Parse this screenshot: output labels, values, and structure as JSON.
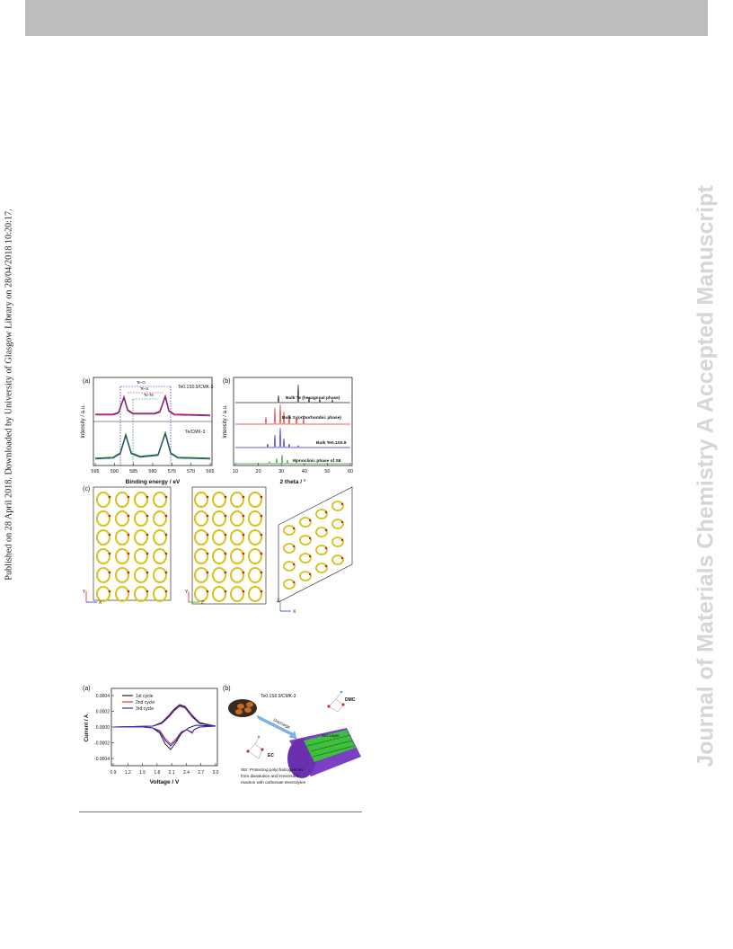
{
  "page": {
    "side_note": "Published on 28 April 2018. Downloaded by University of Glasgow Library on 28/04/2018 10:20:17.",
    "journal_watermark": "Journal of Materials Chemistry A Accepted Manuscript"
  },
  "figure1": {
    "panel_a": {
      "label": "(a)",
      "ylabel": "Intensity / a.u.",
      "xlabel": "Binding energy / eV",
      "xticks": [
        "595",
        "590",
        "585",
        "580",
        "575",
        "570",
        "565"
      ],
      "top_sample": "Te0.1S0.9/CMK-3",
      "bottom_sample": "Te/CMK-3",
      "annotations": [
        "Te-O",
        "Te-S",
        "Te-Te"
      ]
    },
    "panel_b": {
      "label": "(b)",
      "ylabel": "Intensity / a.u.",
      "xlabel": "2 theta / °",
      "xticks": [
        "10",
        "20",
        "30",
        "40",
        "50",
        "60"
      ],
      "traces": [
        "Bulk Te (hexagonal phase)",
        "Bulk S (orthorhombic phase)",
        "Bulk Te0.1S0.9",
        "Monoclinic phase of S8"
      ],
      "colors": [
        "#222222",
        "#e23030",
        "#2a2ad8",
        "#2e9a2e"
      ]
    },
    "panel_c": {
      "label": "(c)",
      "axes": [
        [
          "Y",
          "X"
        ],
        [
          "Y",
          "Z"
        ],
        [
          "Z",
          "X"
        ]
      ]
    }
  },
  "figure2": {
    "panel_a": {
      "label": "(a)",
      "ylabel": "Current / A",
      "xlabel": "Voltage / V",
      "yticks": [
        "0.0004",
        "0.0002",
        "0.0000",
        "-0.0002",
        "-0.0004"
      ],
      "xticks": [
        "0.9",
        "1.2",
        "1.5",
        "1.8",
        "2.1",
        "2.4",
        "2.7",
        "3.0"
      ],
      "legend": [
        "1st cycle",
        "2nd cycle",
        "3rd cycle"
      ],
      "colors": [
        "#222222",
        "#e23030",
        "#2a2ad8"
      ]
    },
    "panel_b": {
      "label": "(b)",
      "material": "Te0.1S0.9/CMK-3",
      "arrow_label": "Discharge",
      "sei_label": "SEI Layer",
      "dmc_label": "DMC",
      "ec_label": "EC",
      "caption_lines": [
        "SEI: Protecting  polychalcogenides",
        "from dissolution and irreversible",
        "reaction with carbonate electrolytes"
      ]
    }
  }
}
